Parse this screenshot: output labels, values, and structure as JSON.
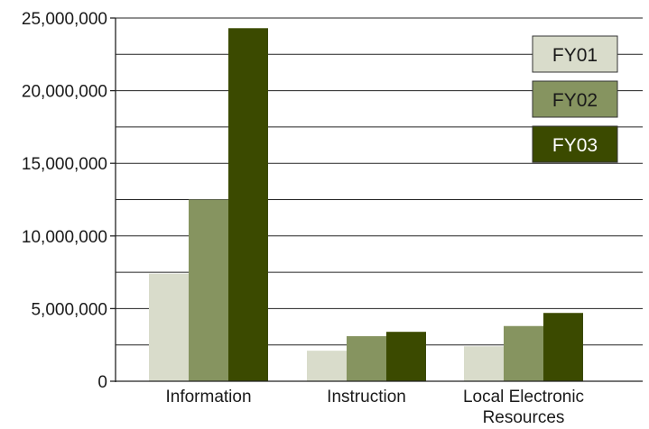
{
  "chart_data": {
    "type": "bar",
    "categories": [
      "Information",
      "Instruction",
      "Local Electronic Resources"
    ],
    "category_label_lines": [
      [
        "Information"
      ],
      [
        "Instruction"
      ],
      [
        "Local Electronic",
        "Resources"
      ]
    ],
    "series": [
      {
        "name": "FY01",
        "values": [
          7400000,
          2100000,
          2400000
        ],
        "color": "#d9dccb"
      },
      {
        "name": "FY02",
        "values": [
          12500000,
          3100000,
          3800000
        ],
        "color": "#869460"
      },
      {
        "name": "FY03",
        "values": [
          24300000,
          3400000,
          4700000
        ],
        "color": "#3b4a00"
      }
    ],
    "ylim": [
      0,
      25000000
    ],
    "y_ticks": [
      0,
      5000000,
      10000000,
      15000000,
      20000000,
      25000000
    ],
    "y_tick_labels": [
      "0",
      "5,000,000",
      "10,000,000",
      "15,000,000",
      "20,000,000",
      "25,000,000"
    ],
    "grid": true,
    "legend_position": "top-right",
    "title": "",
    "xlabel": "",
    "ylabel": ""
  }
}
